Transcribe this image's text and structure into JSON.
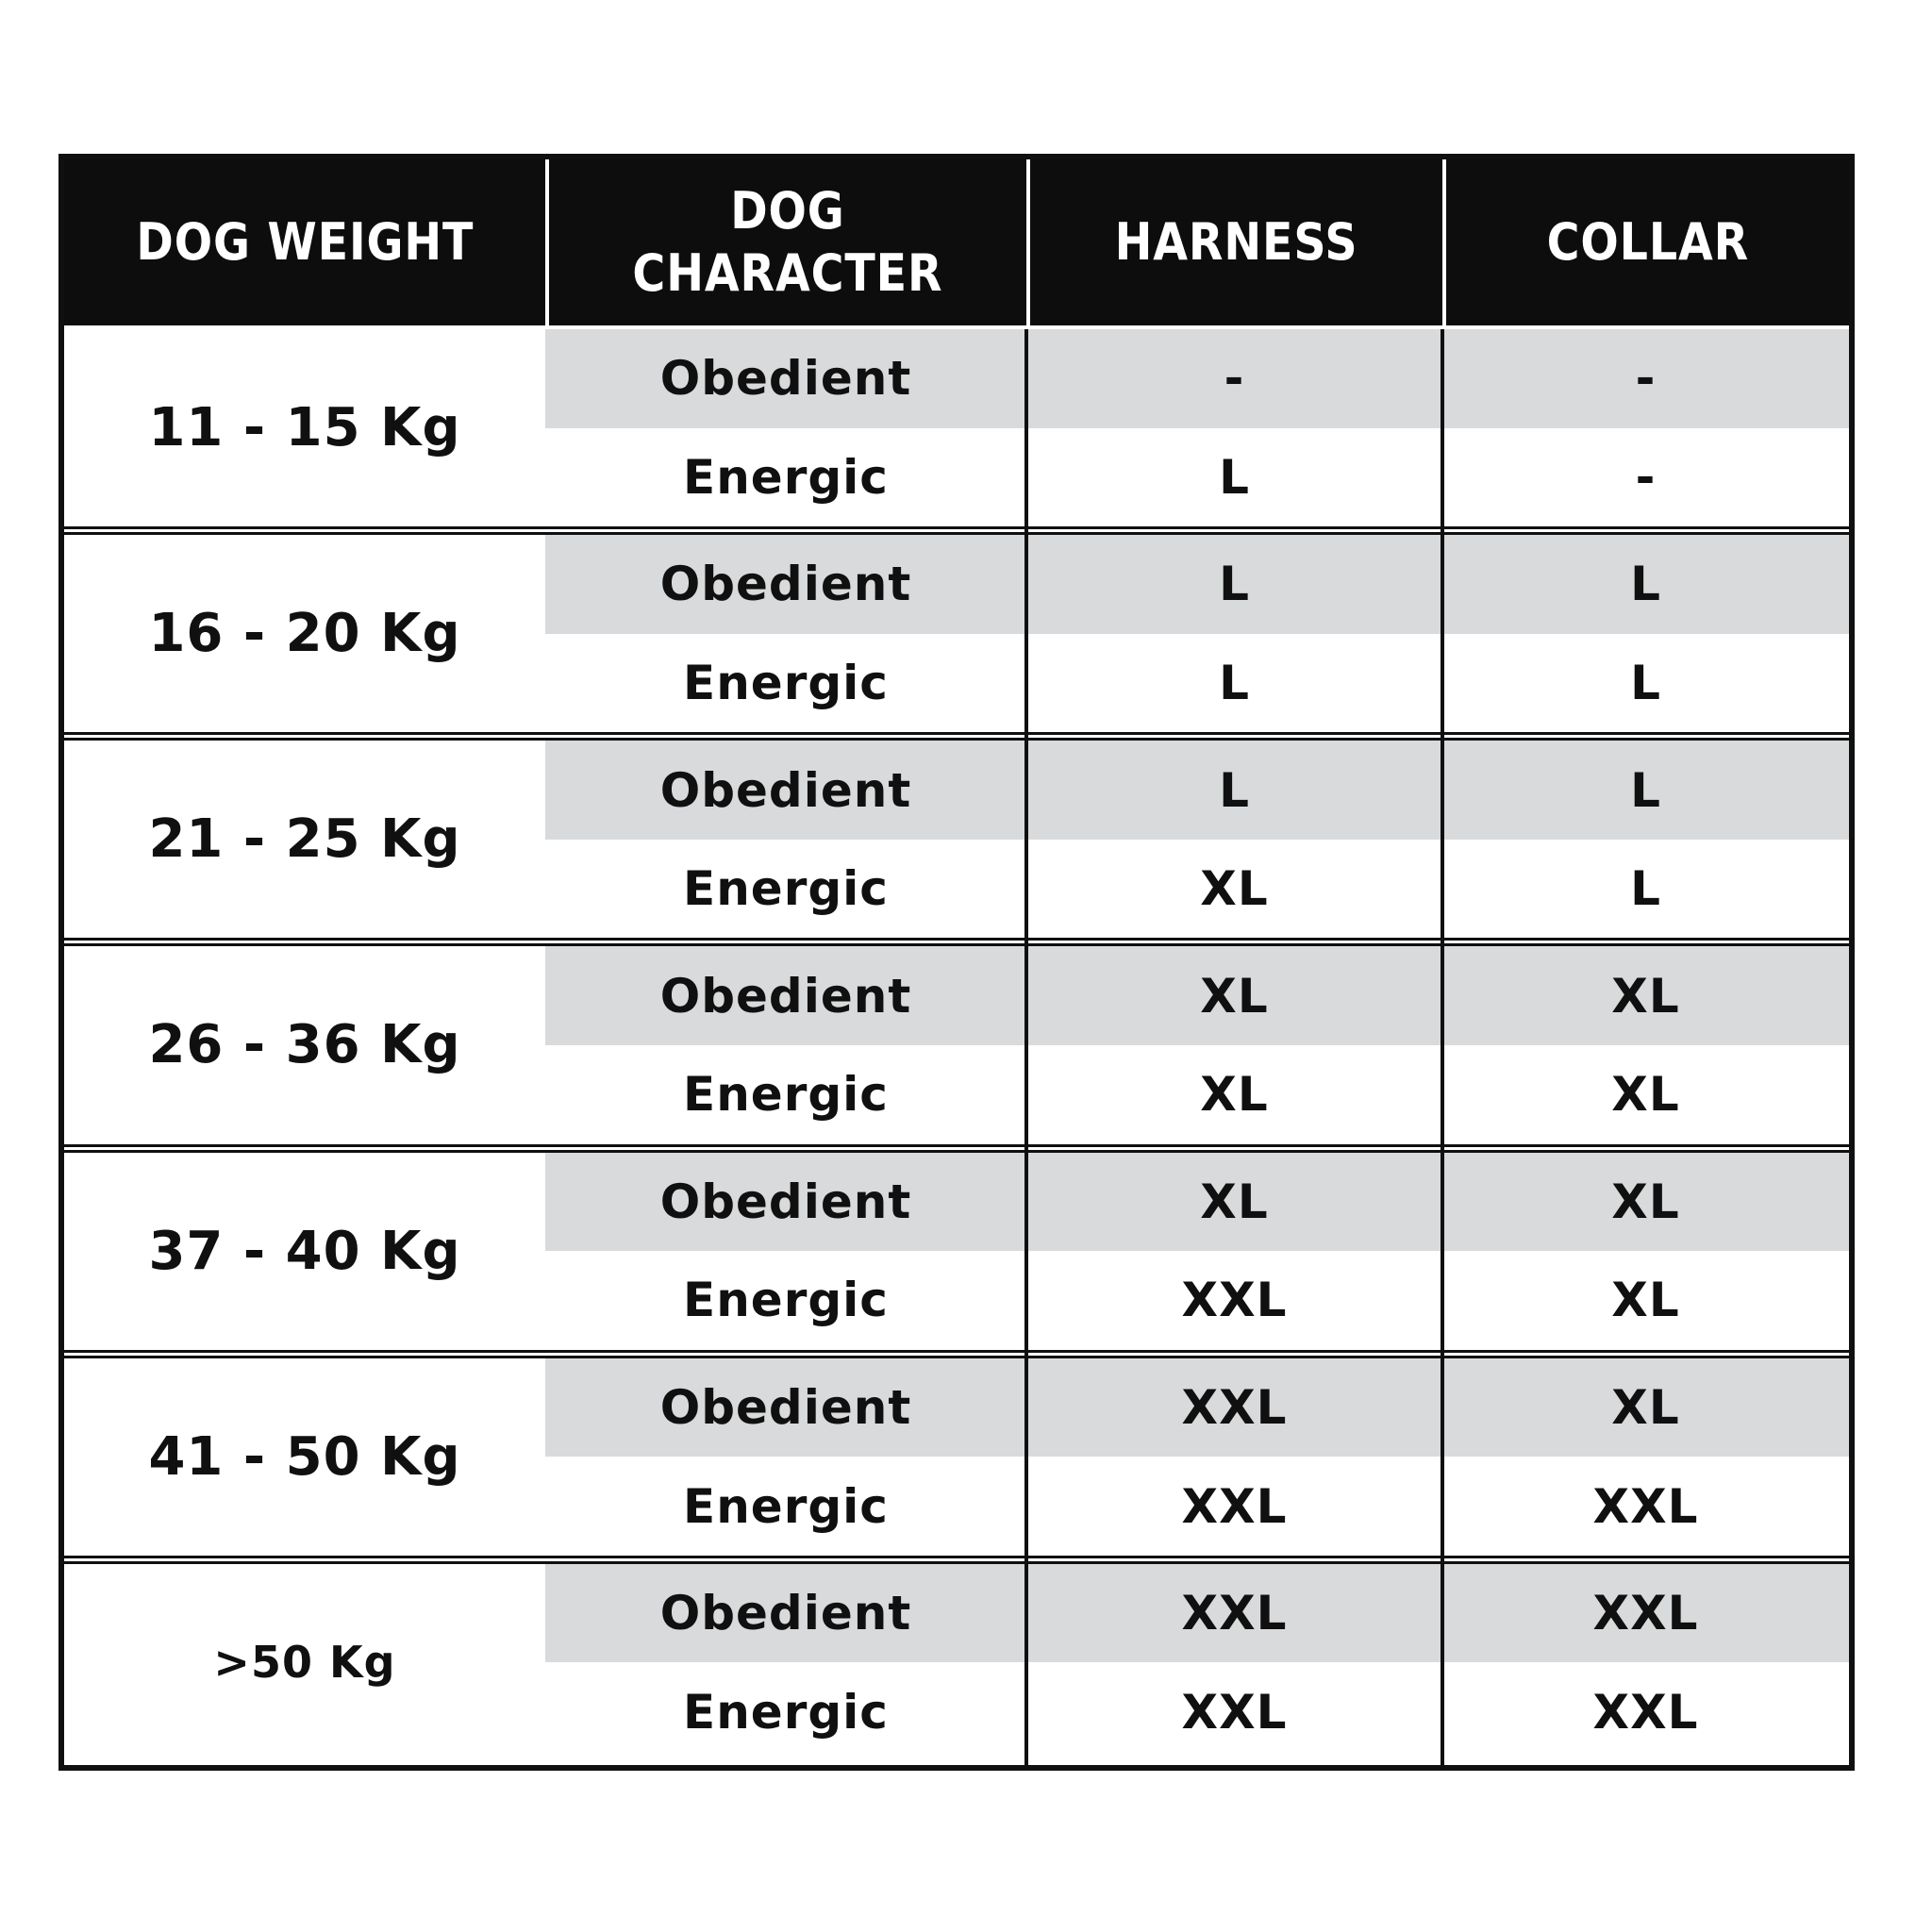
{
  "table": {
    "columns": [
      {
        "key": "weight",
        "label": "DOG WEIGHT"
      },
      {
        "key": "character",
        "label": "DOG\nCHARACTER"
      },
      {
        "key": "harness",
        "label": "HARNESS"
      },
      {
        "key": "collar",
        "label": "COLLAR"
      }
    ],
    "groups": [
      {
        "weight": "11 - 15 Kg",
        "small": false,
        "rows": [
          {
            "character": "Obedient",
            "harness": "-",
            "collar": "-"
          },
          {
            "character": "Energic",
            "harness": "L",
            "collar": "-"
          }
        ]
      },
      {
        "weight": "16 - 20 Kg",
        "small": false,
        "rows": [
          {
            "character": "Obedient",
            "harness": "L",
            "collar": "L"
          },
          {
            "character": "Energic",
            "harness": "L",
            "collar": "L"
          }
        ]
      },
      {
        "weight": "21 - 25 Kg",
        "small": false,
        "rows": [
          {
            "character": "Obedient",
            "harness": "L",
            "collar": "L"
          },
          {
            "character": "Energic",
            "harness": "XL",
            "collar": "L"
          }
        ]
      },
      {
        "weight": "26 - 36 Kg",
        "small": false,
        "rows": [
          {
            "character": "Obedient",
            "harness": "XL",
            "collar": "XL"
          },
          {
            "character": "Energic",
            "harness": "XL",
            "collar": "XL"
          }
        ]
      },
      {
        "weight": "37 - 40 Kg",
        "small": false,
        "rows": [
          {
            "character": "Obedient",
            "harness": "XL",
            "collar": "XL"
          },
          {
            "character": "Energic",
            "harness": "XXL",
            "collar": "XL"
          }
        ]
      },
      {
        "weight": "41 - 50 Kg",
        "small": false,
        "rows": [
          {
            "character": "Obedient",
            "harness": "XXL",
            "collar": "XL"
          },
          {
            "character": "Energic",
            "harness": "XXL",
            "collar": "XXL"
          }
        ]
      },
      {
        "weight": ">50 Kg",
        "small": true,
        "rows": [
          {
            "character": "Obedient",
            "harness": "XXL",
            "collar": "XXL"
          },
          {
            "character": "Energic",
            "harness": "XXL",
            "collar": "XXL"
          }
        ]
      }
    ],
    "colors": {
      "header_bg": "#0d0d0d",
      "header_text": "#ffffff",
      "obedient_row_bg": "#d9dadb",
      "energic_row_bg": "#ffffff",
      "grid_line": "#101010",
      "body_text": "#101010"
    }
  },
  "chart_data": {
    "type": "table",
    "columns": [
      "DOG WEIGHT",
      "DOG CHARACTER",
      "HARNESS",
      "COLLAR"
    ],
    "rows": [
      [
        "11 - 15 Kg",
        "Obedient",
        "-",
        "-"
      ],
      [
        "11 - 15 Kg",
        "Energic",
        "L",
        "-"
      ],
      [
        "16 - 20 Kg",
        "Obedient",
        "L",
        "L"
      ],
      [
        "16 - 20 Kg",
        "Energic",
        "L",
        "L"
      ],
      [
        "21 - 25 Kg",
        "Obedient",
        "L",
        "L"
      ],
      [
        "21 - 25 Kg",
        "Energic",
        "XL",
        "L"
      ],
      [
        "26 - 36 Kg",
        "Obedient",
        "XL",
        "XL"
      ],
      [
        "26 - 36 Kg",
        "Energic",
        "XL",
        "XL"
      ],
      [
        "37 - 40 Kg",
        "Obedient",
        "XL",
        "XL"
      ],
      [
        "37 - 40 Kg",
        "Energic",
        "XXL",
        "XL"
      ],
      [
        "41 - 50 Kg",
        "Obedient",
        "XXL",
        "XL"
      ],
      [
        "41 - 50 Kg",
        "Energic",
        "XXL",
        "XXL"
      ],
      [
        ">50 Kg",
        "Obedient",
        "XXL",
        "XXL"
      ],
      [
        ">50 Kg",
        "Energic",
        "XXL",
        "XXL"
      ]
    ],
    "layout": {
      "grid": "black medium lines between column 2/3, 3/4 and between weight groups",
      "alt_row_shading": "Obedient rows shaded light gray"
    }
  }
}
